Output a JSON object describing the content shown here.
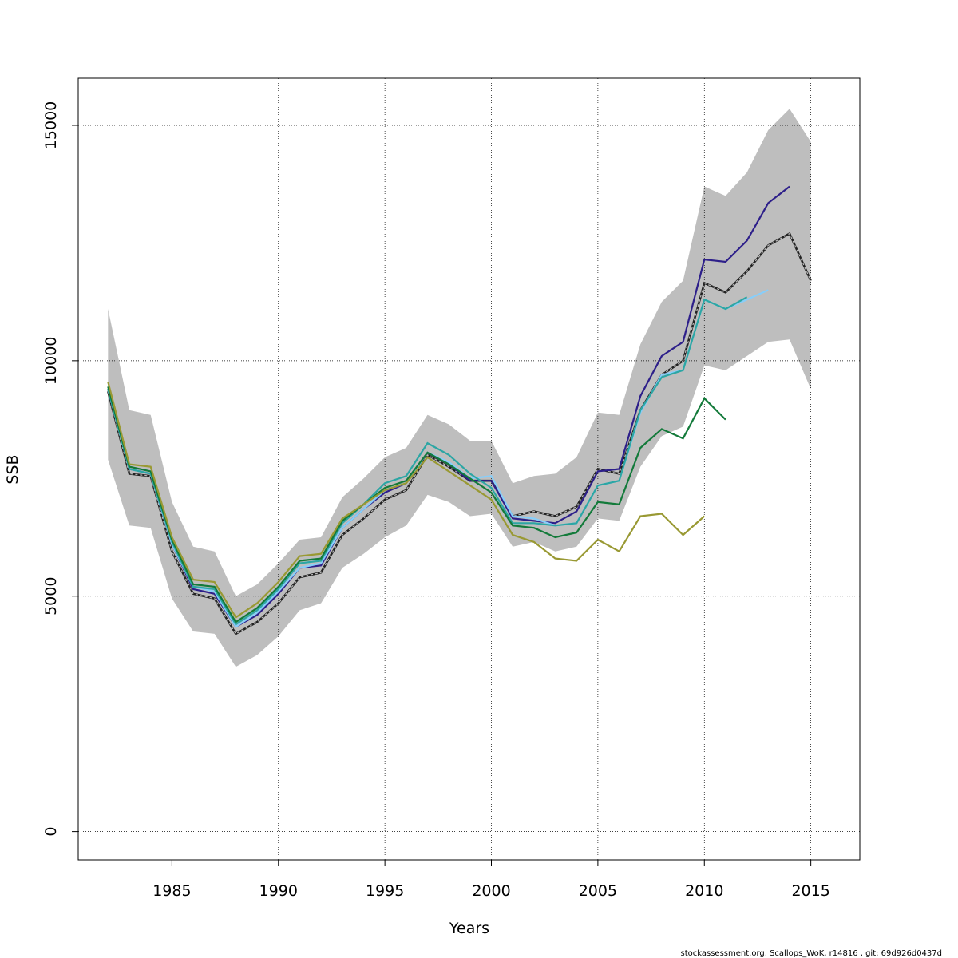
{
  "chart_data": {
    "type": "line",
    "xlabel": "Years",
    "ylabel": "SSB",
    "xlim": [
      1980.6,
      2017.3
    ],
    "ylim": [
      -600,
      16000
    ],
    "x_ticks": [
      1985,
      1990,
      1995,
      2000,
      2005,
      2010,
      2015
    ],
    "y_ticks": [
      0,
      5000,
      10000,
      15000
    ],
    "grid": true,
    "band_color": "#bebebe",
    "confidence_band": {
      "x": [
        1982,
        1983,
        1984,
        1985,
        1986,
        1987,
        1988,
        1989,
        1990,
        1991,
        1992,
        1993,
        1994,
        1995,
        1996,
        1997,
        1998,
        1999,
        2000,
        2001,
        2002,
        2003,
        2004,
        2005,
        2006,
        2007,
        2008,
        2009,
        2010,
        2011,
        2012,
        2013,
        2014,
        2015
      ],
      "lower": [
        7900,
        6500,
        6450,
        4950,
        4250,
        4200,
        3500,
        3750,
        4150,
        4700,
        4850,
        5600,
        5900,
        6250,
        6500,
        7150,
        7000,
        6700,
        6750,
        6050,
        6150,
        5950,
        6050,
        6650,
        6600,
        7750,
        8400,
        8600,
        9900,
        9800,
        10100,
        10400,
        10450,
        9400
      ],
      "upper": [
        11100,
        8950,
        8850,
        7000,
        6050,
        5950,
        5000,
        5250,
        5700,
        6200,
        6250,
        7100,
        7500,
        7950,
        8150,
        8850,
        8650,
        8300,
        8300,
        7400,
        7550,
        7600,
        7950,
        8900,
        8850,
        10350,
        11250,
        11700,
        13700,
        13500,
        14000,
        14900,
        15350,
        14650
      ]
    },
    "series": [
      {
        "color": "#222222",
        "dashed": true,
        "x": [
          1982,
          1983,
          1984,
          1985,
          1986,
          1987,
          1988,
          1989,
          1990,
          1991,
          1992,
          1993,
          1994,
          1995,
          1996,
          1997,
          1998,
          1999,
          2000,
          2001,
          2002,
          2003,
          2004,
          2005,
          2006,
          2007,
          2008,
          2009,
          2010,
          2011,
          2012,
          2013,
          2014,
          2015
        ],
        "values": [
          9350,
          7600,
          7550,
          5950,
          5050,
          4950,
          4200,
          4450,
          4850,
          5400,
          5500,
          6300,
          6650,
          7050,
          7250,
          8000,
          7750,
          7450,
          7450,
          6700,
          6800,
          6700,
          6900,
          7700,
          7600,
          8950,
          9700,
          10000,
          11650,
          11450,
          11900,
          12450,
          12700,
          11700
        ]
      },
      {
        "color": "#2d1f8a",
        "dashed": false,
        "x": [
          1982,
          1983,
          1984,
          1985,
          1986,
          1987,
          1988,
          1989,
          1990,
          1991,
          1992,
          1993,
          1994,
          1995,
          1996,
          1997,
          1998,
          1999,
          2000,
          2001,
          2002,
          2003,
          2004,
          2005,
          2006,
          2007,
          2008,
          2009,
          2010,
          2011,
          2012,
          2013,
          2014
        ],
        "values": [
          9400,
          7700,
          7600,
          6100,
          5150,
          5050,
          4350,
          4600,
          5050,
          5600,
          5650,
          6450,
          6850,
          7200,
          7400,
          8050,
          7800,
          7450,
          7450,
          6650,
          6600,
          6550,
          6800,
          7650,
          7700,
          9250,
          10100,
          10400,
          12150,
          12100,
          12550,
          13350,
          13700
        ]
      },
      {
        "color": "#87cefa",
        "dashed": false,
        "x": [
          1982,
          1983,
          1984,
          1985,
          1986,
          1987,
          1988,
          1989,
          1990,
          1991,
          1992,
          1993,
          1994,
          1995,
          1996,
          1997,
          1998,
          1999,
          2000,
          2001,
          2002,
          2003,
          2004,
          2005,
          2006,
          2007,
          2008,
          2009,
          2010,
          2011,
          2012,
          2013
        ],
        "values": [
          9400,
          7700,
          7600,
          6100,
          5200,
          5100,
          4350,
          4650,
          5100,
          5600,
          5700,
          6450,
          6850,
          7250,
          7400,
          8050,
          7850,
          7500,
          7550,
          6700,
          6650,
          6500,
          6550,
          7350,
          7450,
          8900,
          9700,
          9800,
          11300,
          11100,
          11300,
          11500
        ]
      },
      {
        "color": "#2ca6a4",
        "dashed": false,
        "x": [
          1982,
          1983,
          1984,
          1985,
          1986,
          1987,
          1988,
          1989,
          1990,
          1991,
          1992,
          1993,
          1994,
          1995,
          1996,
          1997,
          1998,
          1999,
          2000,
          2001,
          2002,
          2003,
          2004,
          2005,
          2006,
          2007,
          2008,
          2009,
          2010,
          2011,
          2012
        ],
        "values": [
          9400,
          7700,
          7600,
          6150,
          5200,
          5150,
          4400,
          4700,
          5150,
          5700,
          5750,
          6550,
          6950,
          7400,
          7550,
          8250,
          8000,
          7600,
          7300,
          6550,
          6550,
          6500,
          6550,
          7350,
          7450,
          8950,
          9650,
          9800,
          11300,
          11100,
          11350
        ]
      },
      {
        "color": "#137a3a",
        "dashed": false,
        "x": [
          1982,
          1983,
          1984,
          1985,
          1986,
          1987,
          1988,
          1989,
          1990,
          1991,
          1992,
          1993,
          1994,
          1995,
          1996,
          1997,
          1998,
          1999,
          2000,
          2001,
          2002,
          2003,
          2004,
          2005,
          2006,
          2007,
          2008,
          2009,
          2010,
          2011
        ],
        "values": [
          9450,
          7750,
          7650,
          6200,
          5250,
          5200,
          4450,
          4750,
          5200,
          5750,
          5800,
          6600,
          6950,
          7300,
          7450,
          8050,
          7800,
          7500,
          7200,
          6500,
          6450,
          6250,
          6350,
          7000,
          6950,
          8150,
          8550,
          8350,
          9200,
          8750
        ]
      },
      {
        "color": "#999933",
        "dashed": false,
        "x": [
          1982,
          1983,
          1984,
          1985,
          1986,
          1987,
          1988,
          1989,
          1990,
          1991,
          1992,
          1993,
          1994,
          1995,
          1996,
          1997,
          1998,
          1999,
          2000,
          2001,
          2002,
          2003,
          2004,
          2005,
          2006,
          2007,
          2008,
          2009,
          2010
        ],
        "values": [
          9550,
          7800,
          7750,
          6250,
          5350,
          5300,
          4550,
          4850,
          5300,
          5850,
          5900,
          6650,
          6950,
          7250,
          7400,
          7950,
          7650,
          7350,
          7050,
          6300,
          6150,
          5800,
          5750,
          6200,
          5950,
          6700,
          6750,
          6300,
          6700
        ]
      }
    ]
  },
  "footer": "stockassessment.org, Scallops_WoK, r14816 , git: 69d926d0437d"
}
